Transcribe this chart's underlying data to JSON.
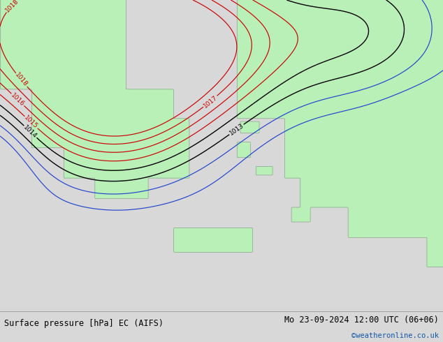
{
  "title_left": "Surface pressure [hPa] EC (AIFS)",
  "title_right": "Mo 23-09-2024 12:00 UTC (06+06)",
  "credit": "©weatheronline.co.uk",
  "bg_color": "#d8d8d8",
  "land_color": "#b8f0b8",
  "sea_color": "#d8d8d8",
  "coast_color": "#888888",
  "contour_red": "#cc0000",
  "contour_black": "#000000",
  "contour_blue": "#2244cc",
  "label_fontsize": 6.5,
  "footer_fontsize": 8.5,
  "credit_color": "#1155aa",
  "lon_min": 18.5,
  "lon_max": 32.5,
  "lat_min": 33.0,
  "lat_max": 43.5
}
